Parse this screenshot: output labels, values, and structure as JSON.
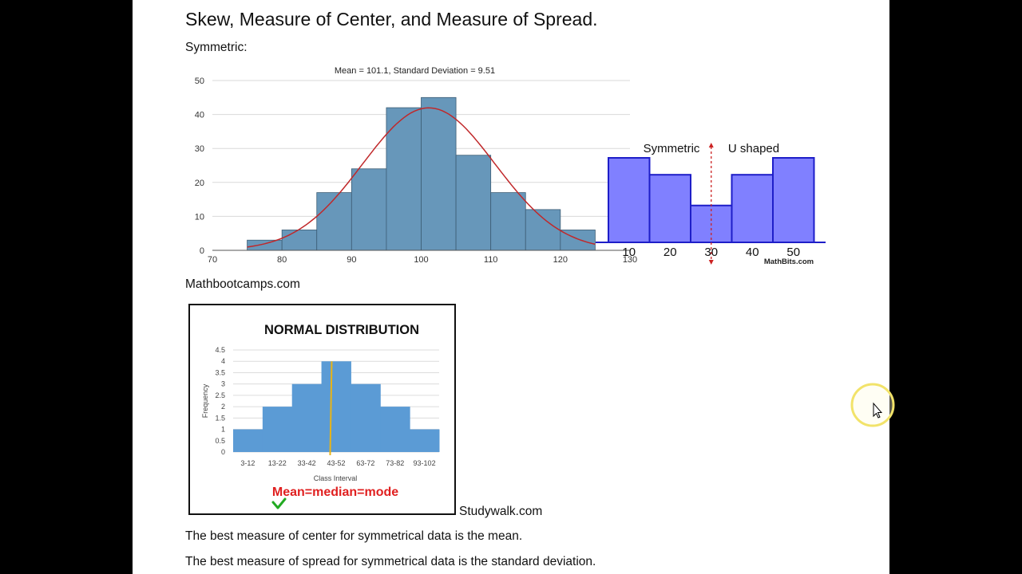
{
  "title": "Skew, Measure of Center, and Measure of Spread.",
  "symmetric_label": "Symmetric:",
  "source_1": "Mathbootcamps.com",
  "source_2": "Studywalk.com",
  "sentence_1": "The best measure of center for symmetrical data is the mean.",
  "sentence_2": "The best measure of spread for symmetrical data is the standard deviation.",
  "chart_data": [
    {
      "type": "bar",
      "title": "Mean = 101.1, Standard Deviation = 9.51",
      "bin_edges": [
        75,
        80,
        85,
        90,
        95,
        100,
        105,
        110,
        115,
        120,
        125
      ],
      "values": [
        3,
        6,
        17,
        24,
        42,
        45,
        28,
        17,
        12,
        6
      ],
      "xlim": [
        70,
        130
      ],
      "ylim": [
        0,
        50
      ],
      "xticks": [
        "70",
        "80",
        "90",
        "100",
        "110",
        "120",
        "130"
      ],
      "yticks": [
        "0",
        "10",
        "20",
        "30",
        "40",
        "50"
      ],
      "overlay": {
        "type": "normal-curve",
        "mean": 101.1,
        "sd": 9.51
      },
      "colors": {
        "bar": "#6797ba",
        "curve": "#c0282a"
      }
    },
    {
      "type": "bar",
      "categories": [
        "10",
        "20",
        "30",
        "40",
        "50"
      ],
      "values": [
        27.5,
        22,
        12,
        22,
        27.5
      ],
      "labels": {
        "left": "Symmetric",
        "right": "U shaped"
      },
      "watermark": "MathBits.com",
      "colors": {
        "bar": "#8080ff",
        "edge": "#1e1ec8",
        "axis_line": "#cc2222"
      }
    },
    {
      "type": "bar",
      "title": "NORMAL DISTRIBUTION",
      "categories": [
        "3-12",
        "13-22",
        "33-42",
        "43-52",
        "63-72",
        "73-82",
        "93-102"
      ],
      "values": [
        1,
        2,
        3,
        4,
        3,
        2,
        1
      ],
      "ylim": [
        0,
        4.5
      ],
      "yticks": [
        "0",
        "0.5",
        "1",
        "1.5",
        "2",
        "2.5",
        "3",
        "3.5",
        "4",
        "4.5"
      ],
      "xlabel": "Class Interval",
      "ylabel": "Frequency",
      "caption": "Mean=median=mode",
      "colors": {
        "bar": "#5b9bd5",
        "center_line": "#e8b417",
        "caption": "#e02020",
        "check": "#22aa22"
      }
    }
  ]
}
